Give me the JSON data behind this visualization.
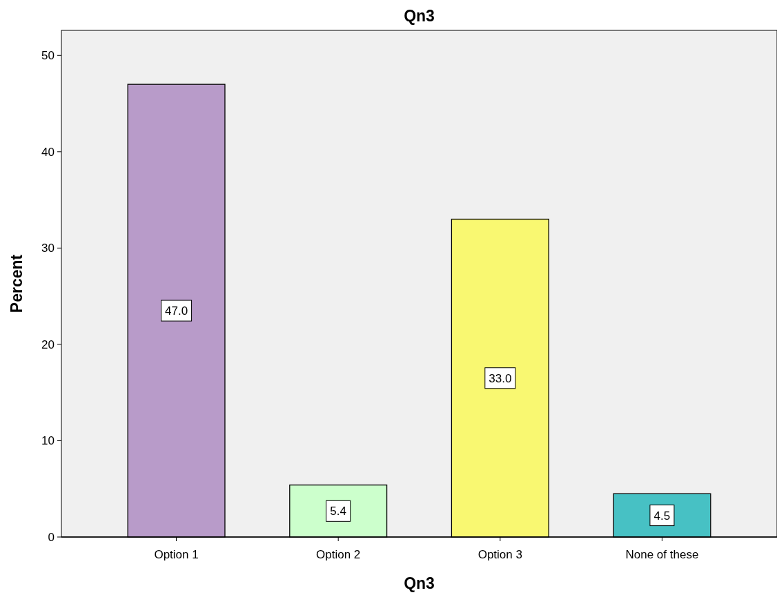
{
  "chart_data": {
    "type": "bar",
    "title": "Qn3",
    "xlabel": "Qn3",
    "ylabel": "Percent",
    "categories": [
      "Option 1",
      "Option 2",
      "Option 3",
      "None of these"
    ],
    "values": [
      47.0,
      5.4,
      33.0,
      4.5
    ],
    "value_labels": [
      "47.0",
      "5.4",
      "33.0",
      "4.5"
    ],
    "colors": [
      "#b89bc9",
      "#ccffcc",
      "#f9f871",
      "#47c1c4"
    ],
    "ylim": [
      0,
      52.6
    ],
    "yticks": [
      0,
      10,
      20,
      30,
      40,
      50
    ]
  }
}
